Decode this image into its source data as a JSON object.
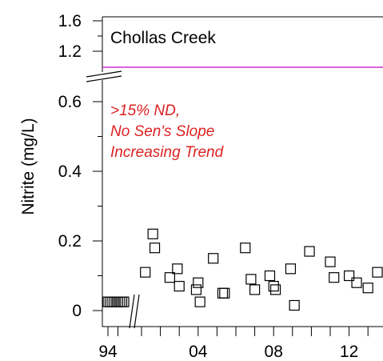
{
  "chart_data": {
    "type": "scatter",
    "title": "",
    "site_label": "Chollas Creek",
    "ylabel": "Nitrite (mg/L)",
    "xlabel": "",
    "x_ticks": [
      "94",
      "04",
      "08",
      "12"
    ],
    "y_ticks_lower": [
      "0",
      "0.2",
      "0.4",
      "0.6"
    ],
    "y_ticks_upper": [
      "1.2",
      "1.6"
    ],
    "ylim_lower": [
      0,
      0.62
    ],
    "ylim_upper": [
      1.1,
      1.6
    ],
    "grid": false,
    "axis_breaks": [
      "y between 0.62 and 1.1",
      "x between 95 and 01"
    ],
    "reference_line": {
      "value": 1.0,
      "color": "#cc33cc"
    },
    "annotation_lines": [
      ">15% ND,",
      "No Sen's Slope",
      "Increasing Trend"
    ],
    "annotation_color": "#dd2222",
    "marker": "open-square",
    "series": [
      {
        "points": [
          {
            "x": 1994.0,
            "y": 0.025
          },
          {
            "x": 1994.2,
            "y": 0.025
          },
          {
            "x": 1994.4,
            "y": 0.025
          },
          {
            "x": 1994.6,
            "y": 0.025
          },
          {
            "x": 1994.8,
            "y": 0.025
          },
          {
            "x": 1995.0,
            "y": 0.025
          },
          {
            "x": 1995.2,
            "y": 0.025
          },
          {
            "x": 1995.4,
            "y": 0.025
          },
          {
            "x": 1995.6,
            "y": 0.025
          },
          {
            "x": 2001.2,
            "y": 0.11
          },
          {
            "x": 2001.6,
            "y": 0.22
          },
          {
            "x": 2001.7,
            "y": 0.18
          },
          {
            "x": 2002.5,
            "y": 0.095
          },
          {
            "x": 2002.9,
            "y": 0.12
          },
          {
            "x": 2003.0,
            "y": 0.07
          },
          {
            "x": 2003.9,
            "y": 0.06
          },
          {
            "x": 2004.0,
            "y": 0.08
          },
          {
            "x": 2004.1,
            "y": 0.025
          },
          {
            "x": 2004.8,
            "y": 0.15
          },
          {
            "x": 2005.3,
            "y": 0.05
          },
          {
            "x": 2005.4,
            "y": 0.05
          },
          {
            "x": 2006.5,
            "y": 0.18
          },
          {
            "x": 2006.8,
            "y": 0.09
          },
          {
            "x": 2007.0,
            "y": 0.06
          },
          {
            "x": 2007.8,
            "y": 0.1
          },
          {
            "x": 2008.0,
            "y": 0.07
          },
          {
            "x": 2008.1,
            "y": 0.06
          },
          {
            "x": 2008.9,
            "y": 0.12
          },
          {
            "x": 2009.1,
            "y": 0.015
          },
          {
            "x": 2009.9,
            "y": 0.17
          },
          {
            "x": 2011.0,
            "y": 0.14
          },
          {
            "x": 2011.2,
            "y": 0.095
          },
          {
            "x": 2012.0,
            "y": 0.1
          },
          {
            "x": 2012.4,
            "y": 0.08
          },
          {
            "x": 2013.0,
            "y": 0.065
          },
          {
            "x": 2013.5,
            "y": 0.11
          }
        ]
      }
    ]
  }
}
